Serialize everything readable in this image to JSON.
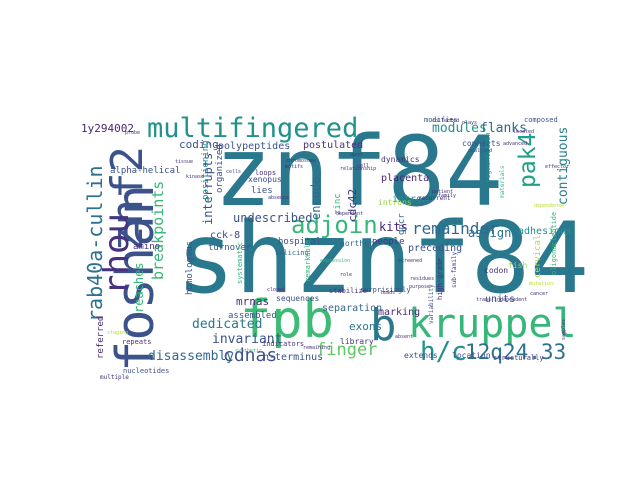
{
  "words": [
    {
      "text": "znf84",
      "color": "#2a788e",
      "weight": 1.0
    },
    {
      "text": "shznf84",
      "color": "#2a788e",
      "weight": 0.96
    },
    {
      "text": "foshan",
      "color": "#3b528b",
      "weight": 0.62
    },
    {
      "text": "fpb",
      "color": "#3bbb75",
      "weight": 0.56
    },
    {
      "text": "kruppel",
      "color": "#35b779",
      "weight": 0.52
    },
    {
      "text": "b",
      "color": "#2a788e",
      "weight": 0.5
    },
    {
      "text": "znf2",
      "color": "#3b528b",
      "weight": 0.46
    },
    {
      "text": "rhou",
      "color": "#46327e",
      "weight": 0.4
    },
    {
      "text": "multifingered",
      "color": "#21918c",
      "weight": 0.38
    },
    {
      "text": "h/c",
      "color": "#21918c",
      "weight": 0.32
    },
    {
      "text": "adjoin",
      "color": "#35b779",
      "weight": 0.3
    },
    {
      "text": "rab40a-cullin",
      "color": "#2c728e",
      "weight": 0.28
    },
    {
      "text": "pak4",
      "color": "#1fa088",
      "weight": 0.25
    },
    {
      "text": "12q24.33",
      "color": "#2c728e",
      "weight": 0.22
    },
    {
      "text": "cdnas",
      "color": "#3b528b",
      "weight": 0.2
    },
    {
      "text": "finger",
      "color": "#5ec962",
      "weight": 0.19
    },
    {
      "text": "remainder",
      "color": "#31688e",
      "weight": 0.18
    },
    {
      "text": "breakpoints",
      "color": "#35b779",
      "weight": 0.16
    },
    {
      "text": "modules",
      "color": "#21918c",
      "weight": 0.15
    },
    {
      "text": "flanks",
      "color": "#31688e",
      "weight": 0.15
    },
    {
      "text": "contiguous",
      "color": "#277f8e",
      "weight": 0.14
    },
    {
      "text": "dedicated",
      "color": "#2a788e",
      "weight": 0.13
    },
    {
      "text": "disassembly",
      "color": "#31688e",
      "weight": 0.13
    },
    {
      "text": "invariant",
      "color": "#3b528b",
      "weight": 0.13
    },
    {
      "text": "undescribed",
      "color": "#3b528b",
      "weight": 0.13
    },
    {
      "text": "interrupts",
      "color": "#3b528b",
      "weight": 0.12
    },
    {
      "text": "reaches",
      "color": "#35b779",
      "weight": 0.12
    },
    {
      "text": "encode",
      "color": "#31688e",
      "weight": 0.12
    },
    {
      "text": "assign",
      "color": "#2c728e",
      "weight": 0.12
    },
    {
      "text": "kits",
      "color": "#482677",
      "weight": 0.12
    },
    {
      "text": "exons",
      "color": "#2a788e",
      "weight": 0.11
    },
    {
      "text": "mrnas",
      "color": "#46327e",
      "weight": 0.11
    },
    {
      "text": "cdc42",
      "color": "#46327e",
      "weight": 0.11
    },
    {
      "text": "1y294002",
      "color": "#482677",
      "weight": 0.1
    },
    {
      "text": "coding",
      "color": "#3b528b",
      "weight": 0.1
    },
    {
      "text": "separation",
      "color": "#31688e",
      "weight": 0.1
    },
    {
      "text": "cck-8",
      "color": "#3e4989",
      "weight": 0.1
    },
    {
      "text": "postulated",
      "color": "#46327e",
      "weight": 0.09
    },
    {
      "text": "polypeptides",
      "color": "#3b528b",
      "weight": 0.09
    },
    {
      "text": "marking",
      "color": "#482677",
      "weight": 0.09
    },
    {
      "text": "preceding",
      "color": "#3b528b",
      "weight": 0.09
    },
    {
      "text": "adhesions",
      "color": "#21918c",
      "weight": 0.09
    },
    {
      "text": "intron",
      "color": "#21918c",
      "weight": 0.09
    },
    {
      "text": "n-terminus",
      "color": "#3b528b",
      "weight": 0.09
    },
    {
      "text": "units",
      "color": "#3b528b",
      "weight": 0.09
    },
    {
      "text": "placenta",
      "color": "#482677",
      "weight": 0.08
    },
    {
      "text": "lies",
      "color": "#3b528b",
      "weight": 0.08
    },
    {
      "text": "amino",
      "color": "#46327e",
      "weight": 0.08
    },
    {
      "text": "zinc",
      "color": "#35b779",
      "weight": 0.08
    },
    {
      "text": "hospital",
      "color": "#3b528b",
      "weight": 0.08
    },
    {
      "text": "assembled",
      "color": "#3b528b",
      "weight": 0.08
    },
    {
      "text": "people",
      "color": "#46327e",
      "weight": 0.07
    },
    {
      "text": "homologous",
      "color": "#3b528b",
      "weight": 0.07
    },
    {
      "text": "turnover",
      "color": "#3b528b",
      "weight": 0.07
    },
    {
      "text": "organized",
      "color": "#3b528b",
      "weight": 0.07
    },
    {
      "text": "positioning",
      "color": "#21918c",
      "weight": 0.07
    },
    {
      "text": "gpcr",
      "color": "#31688e",
      "weight": 0.07
    },
    {
      "text": "referred",
      "color": "#482677",
      "weight": 0.07
    },
    {
      "text": "alpha-helical",
      "color": "#3b528b",
      "weight": 0.07
    },
    {
      "text": "cervical",
      "color": "#b5de2b",
      "weight": 0.07
    },
    {
      "text": "xenopus",
      "color": "#3e4989",
      "weight": 0.06
    },
    {
      "text": "connects",
      "color": "#3b528b",
      "weight": 0.06
    },
    {
      "text": "dynamics",
      "color": "#46327e",
      "weight": 0.06
    },
    {
      "text": "introns",
      "color": "#8fd744",
      "weight": 0.06
    },
    {
      "text": "fish",
      "color": "#8fd744",
      "weight": 0.06
    },
    {
      "text": "codon",
      "color": "#46327e",
      "weight": 0.06
    },
    {
      "text": "northern",
      "color": "#31688e",
      "weight": 0.06
    },
    {
      "text": "extends",
      "color": "#3b528b",
      "weight": 0.06
    },
    {
      "text": "library",
      "color": "#46327e",
      "weight": 0.06
    },
    {
      "text": "location",
      "color": "#3e4989",
      "weight": 0.06
    },
    {
      "text": "sequences",
      "color": "#3b528b",
      "weight": 0.06
    },
    {
      "text": "loops",
      "color": "#46327e",
      "weight": 0.06
    },
    {
      "text": "composed",
      "color": "#3b528b",
      "weight": 0.05
    },
    {
      "text": "systematic",
      "color": "#35b779",
      "weight": 0.05
    },
    {
      "text": "indicators",
      "color": "#46327e",
      "weight": 0.05
    },
    {
      "text": "nucleotides",
      "color": "#3b528b",
      "weight": 0.05
    },
    {
      "text": "repeats",
      "color": "#46327e",
      "weight": 0.05
    },
    {
      "text": "structurally",
      "color": "#46327e",
      "weight": 0.05
    },
    {
      "text": "splicing",
      "color": "#31688e",
      "weight": 0.05
    },
    {
      "text": "modifies",
      "color": "#3b528b",
      "weight": 0.05
    },
    {
      "text": "oligonucleotide",
      "color": "#35b779",
      "weight": 0.05
    },
    {
      "text": "remarkable",
      "color": "#35b779",
      "weight": 0.05
    },
    {
      "text": "stabilize",
      "color": "#46327e",
      "weight": 0.05
    },
    {
      "text": "surprisingly",
      "color": "#3b528b",
      "weight": 0.05
    },
    {
      "text": "high-grade",
      "color": "#46327e",
      "weight": 0.05
    },
    {
      "text": "segmentation",
      "color": "#21918c",
      "weight": 0.05
    },
    {
      "text": "recurrent",
      "color": "#46327e",
      "weight": 0.05
    },
    {
      "text": "variability",
      "color": "#3b528b",
      "weight": 0.05
    },
    {
      "text": "sub-family",
      "color": "#46327e",
      "weight": 0.05
    },
    {
      "text": "materials",
      "color": "#35b779",
      "weight": 0.05
    },
    {
      "text": "multiple",
      "color": "#46327e",
      "weight": 0.04
    },
    {
      "text": "relationship",
      "color": "#46327e",
      "weight": 0.04
    },
    {
      "text": "residues",
      "color": "#46327e",
      "weight": 0.04
    },
    {
      "text": "purpose",
      "color": "#46327e",
      "weight": 0.04
    },
    {
      "text": "analyzed",
      "color": "#3b528b",
      "weight": 0.04
    },
    {
      "text": "cancer",
      "color": "#46327e",
      "weight": 0.04
    },
    {
      "text": "plays",
      "color": "#46327e",
      "weight": 0.04
    },
    {
      "text": "probe",
      "color": "#46327e",
      "weight": 0.04
    },
    {
      "text": "cells",
      "color": "#3b528b",
      "weight": 0.04
    },
    {
      "text": "absent",
      "color": "#46327e",
      "weight": 0.04
    },
    {
      "text": "synthetic",
      "color": "#35b779",
      "weight": 0.04
    },
    {
      "text": "screened",
      "color": "#46327e",
      "weight": 0.04
    },
    {
      "text": "motifs",
      "color": "#46327e",
      "weight": 0.04
    },
    {
      "text": "family",
      "color": "#46327e",
      "weight": 0.04
    },
    {
      "text": "patient",
      "color": "#46327e",
      "weight": 0.04
    },
    {
      "text": "collected",
      "color": "#46327e",
      "weight": 0.04
    },
    {
      "text": "expression",
      "color": "#35b779",
      "weight": 0.04
    },
    {
      "text": "staging",
      "color": "#b5de2b",
      "weight": 0.04
    },
    {
      "text": "advanced",
      "color": "#46327e",
      "weight": 0.04
    },
    {
      "text": "effector",
      "color": "#46327e",
      "weight": 0.04
    },
    {
      "text": "chromosome",
      "color": "#46327e",
      "weight": 0.04
    },
    {
      "text": "located",
      "color": "#46327e",
      "weight": 0.04
    },
    {
      "text": "remaining",
      "color": "#46327e",
      "weight": 0.04
    },
    {
      "text": "samples",
      "color": "#46327e",
      "weight": 0.04
    },
    {
      "text": "cloned",
      "color": "#46327e",
      "weight": 0.04
    },
    {
      "text": "leads",
      "color": "#46327e",
      "weight": 0.04
    },
    {
      "text": "mutation",
      "color": "#b5de2b",
      "weight": 0.04
    },
    {
      "text": "kinase",
      "color": "#46327e",
      "weight": 0.04
    },
    {
      "text": "role",
      "color": "#46327e",
      "weight": 0.04
    },
    {
      "text": "tissue",
      "color": "#46327e",
      "weight": 0.04
    },
    {
      "text": "absence",
      "color": "#46327e",
      "weight": 0.04
    },
    {
      "text": "upon",
      "color": "#46327e",
      "weight": 0.04
    },
    {
      "text": "cell",
      "color": "#46327e",
      "weight": 0.04
    },
    {
      "text": "dependent",
      "color": "#46327e",
      "weight": 0.04
    },
    {
      "text": "dependence",
      "color": "#b5de2b",
      "weight": 0.04
    },
    {
      "text": "trans-independent",
      "color": "#46327e",
      "weight": 0.04
    }
  ]
}
